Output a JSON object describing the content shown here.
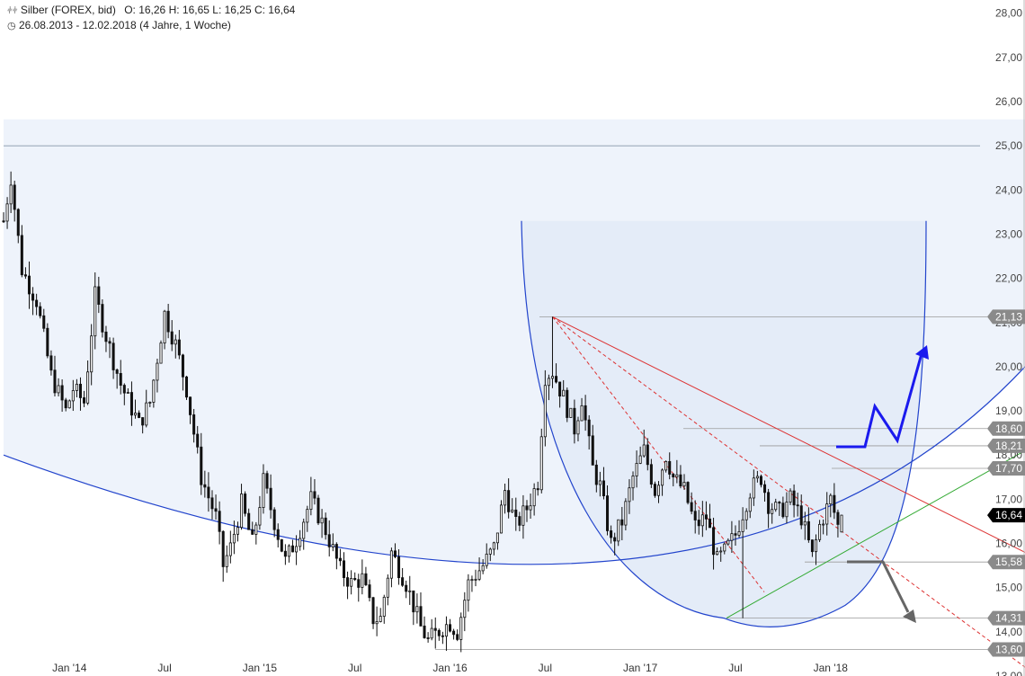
{
  "header": {
    "instrument": "Silber (FOREX, bid)",
    "ohlc": "O: 16,26  H: 16,65  L: 16,25  C: 16,64",
    "range": "26.08.2013 - 12.02.2018  (4 Jahre, 1 Woche)"
  },
  "chart_data": {
    "type": "candlestick",
    "ylim": [
      13.0,
      28.3
    ],
    "ytick_values": [
      13,
      14,
      15,
      16,
      17,
      18,
      19,
      20,
      21,
      22,
      23,
      24,
      25,
      26,
      27,
      28
    ],
    "ytick_labels": [
      "13,00",
      "14,00",
      "15,00",
      "16,00",
      "17,00",
      "18,00",
      "19,00",
      "20,00",
      "21,00",
      "22,00",
      "23,00",
      "24,00",
      "25,00",
      "26,00",
      "27,00",
      "28,00"
    ],
    "x_range_weeks": [
      0,
      229
    ],
    "x_ticks": [
      {
        "label": "Jan '14",
        "week": 18
      },
      {
        "label": "Jul",
        "week": 44
      },
      {
        "label": "Jan '15",
        "week": 70
      },
      {
        "label": "Jul",
        "week": 96
      },
      {
        "label": "Jan '16",
        "week": 122
      },
      {
        "label": "Jul",
        "week": 148
      },
      {
        "label": "Jan '17",
        "week": 174
      },
      {
        "label": "Jul",
        "week": 200
      },
      {
        "label": "Jan '18",
        "week": 226
      }
    ],
    "anchors": [
      [
        0,
        23.3
      ],
      [
        2,
        24.3
      ],
      [
        5,
        22.2
      ],
      [
        9,
        21.5
      ],
      [
        13,
        19.8
      ],
      [
        17,
        19.0
      ],
      [
        19,
        19.5
      ],
      [
        22,
        19.2
      ],
      [
        25,
        21.6
      ],
      [
        28,
        20.7
      ],
      [
        32,
        19.6
      ],
      [
        37,
        18.7
      ],
      [
        40,
        19.2
      ],
      [
        44,
        21.2
      ],
      [
        47,
        20.5
      ],
      [
        50,
        19.5
      ],
      [
        54,
        17.5
      ],
      [
        58,
        16.6
      ],
      [
        60,
        15.5
      ],
      [
        62,
        15.9
      ],
      [
        65,
        16.9
      ],
      [
        68,
        16.0
      ],
      [
        71,
        17.4
      ],
      [
        74,
        16.5
      ],
      [
        77,
        15.6
      ],
      [
        80,
        16.1
      ],
      [
        84,
        17.0
      ],
      [
        88,
        16.3
      ],
      [
        92,
        15.4
      ],
      [
        95,
        15.1
      ],
      [
        98,
        15.2
      ],
      [
        101,
        14.3
      ],
      [
        103,
        14.3
      ],
      [
        106,
        15.8
      ],
      [
        110,
        15.1
      ],
      [
        114,
        14.1
      ],
      [
        116,
        13.8
      ],
      [
        120,
        14.1
      ],
      [
        122,
        14.2
      ],
      [
        124,
        14.0
      ],
      [
        127,
        15.1
      ],
      [
        131,
        15.5
      ],
      [
        134,
        15.9
      ],
      [
        137,
        17.2
      ],
      [
        140,
        16.4
      ],
      [
        143,
        16.8
      ],
      [
        146,
        17.4
      ],
      [
        148,
        19.8
      ],
      [
        150,
        19.9
      ],
      [
        153,
        19.3
      ],
      [
        156,
        18.6
      ],
      [
        158,
        19.3
      ],
      [
        161,
        17.7
      ],
      [
        163,
        17.3
      ],
      [
        166,
        16.0
      ],
      [
        169,
        16.5
      ],
      [
        172,
        17.5
      ],
      [
        175,
        18.1
      ],
      [
        178,
        17.2
      ],
      [
        181,
        18.0
      ],
      [
        183,
        17.5
      ],
      [
        186,
        17.2
      ],
      [
        189,
        16.4
      ],
      [
        192,
        16.6
      ],
      [
        195,
        15.6
      ],
      [
        197,
        15.8
      ],
      [
        200,
        16.2
      ],
      [
        204,
        17.2
      ],
      [
        207,
        17.5
      ],
      [
        209,
        16.9
      ],
      [
        212,
        16.7
      ],
      [
        215,
        17.0
      ],
      [
        218,
        16.6
      ],
      [
        221,
        15.7
      ],
      [
        223,
        16.4
      ],
      [
        226,
        17.0
      ],
      [
        228,
        16.4
      ],
      [
        229,
        16.64
      ]
    ],
    "last_candle": {
      "open": 16.26,
      "high": 16.65,
      "low": 16.25,
      "close": 16.64
    },
    "levels": [
      {
        "label": "21,13",
        "value": 21.13,
        "color": "#7a7a7a"
      },
      {
        "label": "18,60",
        "value": 18.6,
        "color": "#7a7a7a"
      },
      {
        "label": "18,21",
        "value": 18.21,
        "color": "#7a7a7a"
      },
      {
        "label": "17,70",
        "value": 17.7,
        "color": "#7a7a7a"
      },
      {
        "label": "16,64",
        "value": 16.64,
        "color": "#000000"
      },
      {
        "label": "15,58",
        "value": 15.58,
        "color": "#7a7a7a"
      },
      {
        "label": "14,31",
        "value": 14.31,
        "color": "#7a7a7a"
      },
      {
        "label": "13,60",
        "value": 13.6,
        "color": "#7a7a7a"
      }
    ],
    "resistance_25": 25.0,
    "colors": {
      "candle": "#111111",
      "blue_arc": "#2244cc",
      "red_trend": "#dd3333",
      "green_trend": "#33aa33",
      "arrow_up": "#1a1aee",
      "arrow_down": "#666666",
      "shade": "#eef3fb"
    }
  }
}
